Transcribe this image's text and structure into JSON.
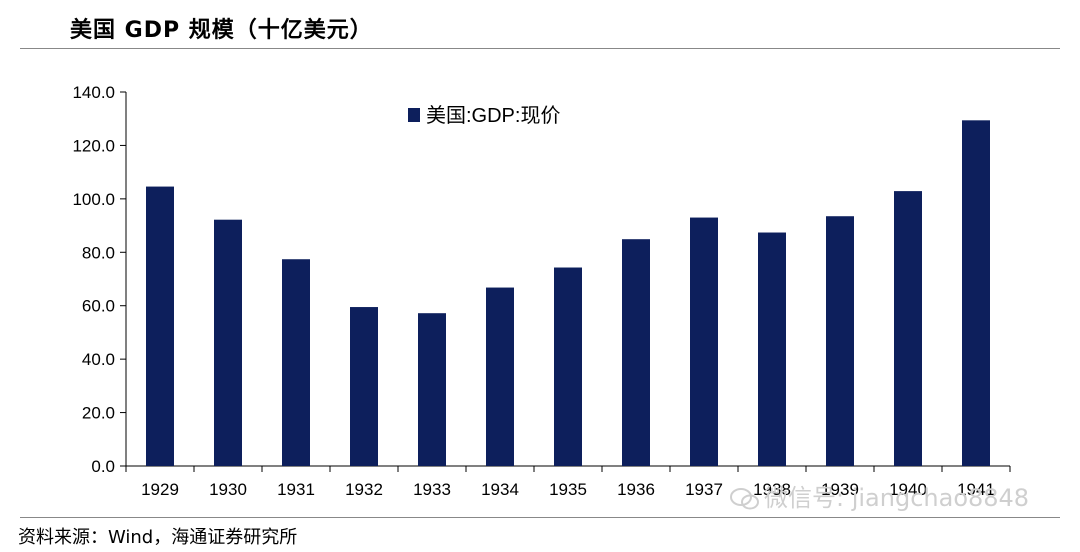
{
  "header": {
    "title": "美国 GDP 规模（十亿美元）"
  },
  "footer": {
    "source": "资料来源：Wind，海通证券研究所"
  },
  "watermark": {
    "text": "微信号: jiangchao8848"
  },
  "colors": {
    "bar": "#0d1f5c",
    "axis": "#000000",
    "rule": "#888888"
  },
  "chart_data": {
    "type": "bar",
    "categories": [
      "1929",
      "1930",
      "1931",
      "1932",
      "1933",
      "1934",
      "1935",
      "1936",
      "1937",
      "1938",
      "1939",
      "1940",
      "1941"
    ],
    "series": [
      {
        "name": "美国:GDP:现价",
        "values": [
          104.6,
          92.2,
          77.4,
          59.5,
          57.2,
          66.8,
          74.3,
          84.9,
          93.0,
          87.4,
          93.5,
          102.9,
          129.4
        ]
      }
    ],
    "ylim": [
      0,
      140
    ],
    "yticks": [
      "0.0",
      "20.0",
      "40.0",
      "60.0",
      "80.0",
      "100.0",
      "120.0",
      "140.0"
    ],
    "legend_position": "top-center",
    "grid": false
  }
}
